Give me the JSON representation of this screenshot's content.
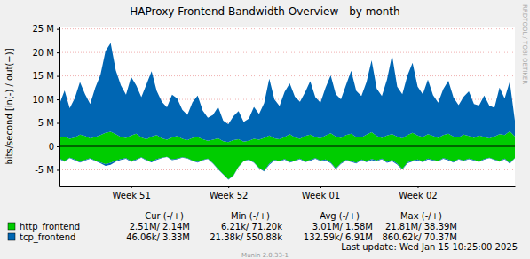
{
  "chart_data": {
    "type": "area",
    "title": "HAProxy Frontend Bandwidth Overview - by month",
    "y_label": "bits/second [in(-) / out(+)]",
    "categories": [
      null,
      null,
      null,
      null,
      null,
      null,
      null,
      null,
      null,
      null,
      null,
      null,
      null,
      null,
      "Week 51",
      null,
      null,
      null,
      null,
      null,
      null,
      null,
      null,
      null,
      null,
      null,
      null,
      null,
      null,
      null,
      null,
      null,
      null,
      "Week 52",
      null,
      null,
      null,
      null,
      null,
      null,
      null,
      null,
      null,
      null,
      null,
      null,
      null,
      null,
      null,
      null,
      null,
      "Week 01",
      null,
      null,
      null,
      null,
      null,
      null,
      null,
      null,
      null,
      null,
      null,
      null,
      null,
      null,
      null,
      null,
      null,
      null,
      "Week 02",
      null,
      null,
      null,
      null,
      null,
      null,
      null,
      null,
      null,
      null,
      null,
      null,
      null,
      null,
      null,
      null,
      null,
      null,
      null
    ],
    "ylim": [
      -8500000,
      25500000
    ],
    "yticks": [
      {
        "value": -5000000,
        "label": "-5 M"
      },
      0,
      {
        "value": 5000000,
        "label": "5 M"
      },
      {
        "value": 10000000,
        "label": "10 M"
      },
      {
        "value": 15000000,
        "label": "15 M"
      },
      {
        "value": 20000000,
        "label": "20 M"
      },
      {
        "value": 25000000,
        "label": "25 M"
      }
    ],
    "grid": true,
    "stacked": true,
    "legend": "bottom",
    "stat_columns": [
      "Cur (-/+)",
      "Min (-/+)",
      "Avg (-/+)",
      "Max (-/+)"
    ],
    "series": [
      {
        "name": "http_frontend",
        "color": "#00cc00",
        "values": [
          1800000,
          2100000,
          1600000,
          1900000,
          2500000,
          2200000,
          1700000,
          2000000,
          2400000,
          2900000,
          3100000,
          2600000,
          2000000,
          1800000,
          2300000,
          2700000,
          1900000,
          1500000,
          2100000,
          2400000,
          1700000,
          1400000,
          1900000,
          2200000,
          1600000,
          1300000,
          1800000,
          2000000,
          1500000,
          1200000,
          1400000,
          1700000,
          1100000,
          900000,
          1300000,
          1500000,
          1000000,
          1200000,
          1600000,
          1400000,
          1800000,
          2300000,
          1700000,
          1500000,
          2000000,
          2600000,
          1900000,
          1600000,
          2200000,
          2500000,
          2000000,
          1700000,
          2300000,
          2800000,
          2100000,
          1800000,
          2400000,
          2700000,
          2000000,
          1900000,
          2500000,
          3000000,
          2200000,
          1800000,
          2300000,
          2600000,
          2100000,
          1700000,
          2400000,
          2900000,
          2300000,
          2000000,
          2600000,
          2200000,
          1800000,
          2400000,
          2700000,
          2100000,
          1900000,
          2500000,
          2200000,
          1800000,
          2300000,
          2000000,
          1700000,
          2100000,
          2600000,
          2400000,
          3200000,
          2140000
        ],
        "in_values": [
          -2600000,
          -3100000,
          -2400000,
          -2800000,
          -3300000,
          -2900000,
          -2500000,
          -3000000,
          -3400000,
          -3800000,
          -3500000,
          -3000000,
          -2700000,
          -2500000,
          -3100000,
          -2800000,
          -2300000,
          -2900000,
          -3200000,
          -2700000,
          -2400000,
          -2200000,
          -2800000,
          -2600000,
          -2300000,
          -2500000,
          -3000000,
          -3300000,
          -2900000,
          -2600000,
          -3600000,
          -4800000,
          -5900000,
          -7000000,
          -6200000,
          -4300000,
          -3100000,
          -2800000,
          -3400000,
          -4600000,
          -5200000,
          -3700000,
          -2900000,
          -3100000,
          -2700000,
          -3300000,
          -3000000,
          -2600000,
          -3200000,
          -2900000,
          -2500000,
          -3000000,
          -2800000,
          -3400000,
          -4700000,
          -3600000,
          -2900000,
          -3100000,
          -3500000,
          -2800000,
          -3200000,
          -2700000,
          -3000000,
          -2600000,
          -3300000,
          -2900000,
          -3700000,
          -4800000,
          -3400000,
          -3000000,
          -2800000,
          -3200000,
          -2600000,
          -2900000,
          -3100000,
          -2500000,
          -2800000,
          -3300000,
          -2700000,
          -3000000,
          -2600000,
          -2900000,
          -3200000,
          -2700000,
          -2400000,
          -2800000,
          -3100000,
          -2600000,
          -3500000,
          -2510000
        ],
        "stats": [
          "2.51M/ 2.14M",
          "6.21k/ 71.20k",
          "3.01M/ 1.58M",
          "21.81M/ 38.39M"
        ]
      },
      {
        "name": "tcp_frontend",
        "color": "#0066b3",
        "values": [
          7200000,
          9800000,
          6500000,
          8400000,
          11200000,
          8900000,
          7300000,
          10500000,
          12800000,
          17400000,
          18900000,
          13600000,
          11000000,
          9200000,
          12500000,
          10300000,
          8600000,
          11700000,
          13900000,
          9400000,
          7800000,
          6900000,
          9100000,
          8000000,
          6200000,
          5400000,
          7600000,
          8800000,
          6100000,
          4900000,
          5300000,
          6700000,
          4400000,
          3800000,
          5100000,
          6000000,
          4200000,
          4700000,
          6800000,
          5500000,
          7400000,
          12100000,
          8300000,
          7100000,
          9600000,
          10800000,
          8700000,
          7900000,
          9300000,
          11400000,
          8500000,
          7600000,
          10200000,
          12300000,
          9000000,
          8200000,
          10700000,
          13400000,
          9800000,
          8800000,
          11200000,
          15300000,
          10100000,
          8900000,
          11900000,
          16800000,
          10600000,
          9400000,
          12700000,
          14900000,
          10400000,
          9100000,
          11600000,
          8700000,
          7500000,
          9800000,
          11300000,
          8300000,
          6900000,
          8100000,
          9500000,
          7200000,
          6400000,
          8800000,
          7000000,
          6100000,
          9900000,
          7800000,
          10600000,
          3330000
        ],
        "in_values": [
          -120000,
          -150000,
          -110000,
          -180000,
          -140000,
          -130000,
          -160000,
          -120000,
          -210000,
          -350000,
          -420000,
          -250000,
          -170000,
          -130000,
          -190000,
          -150000,
          -120000,
          -140000,
          -200000,
          -160000,
          -110000,
          -90000,
          -130000,
          -120000,
          -100000,
          -80000,
          -110000,
          -140000,
          -90000,
          -70000,
          -90000,
          -120000,
          -80000,
          -60000,
          -90000,
          -100000,
          -70000,
          -80000,
          -110000,
          -90000,
          -130000,
          -220000,
          -140000,
          -120000,
          -150000,
          -170000,
          -130000,
          -120000,
          -140000,
          -180000,
          -140000,
          -120000,
          -160000,
          -190000,
          -150000,
          -130000,
          -170000,
          -210000,
          -150000,
          -140000,
          -170000,
          -240000,
          -160000,
          -140000,
          -180000,
          -260000,
          -160000,
          -150000,
          -190000,
          -230000,
          -160000,
          -140000,
          -170000,
          -130000,
          -110000,
          -150000,
          -170000,
          -130000,
          -100000,
          -120000,
          -140000,
          -110000,
          -90000,
          -130000,
          -100000,
          -90000,
          -150000,
          -120000,
          -160000,
          -46060
        ],
        "stats": [
          "46.06k/ 3.33M",
          "21.38k/ 550.88k",
          "132.59k/ 6.91M",
          "860.62k/ 70.37M"
        ]
      }
    ],
    "last_update": "Last update: Wed Jan 15 10:25:00 2025",
    "footer": "Munin 2.0.33-1",
    "watermark": "RRDTOOL / TOBI OETIKER"
  }
}
